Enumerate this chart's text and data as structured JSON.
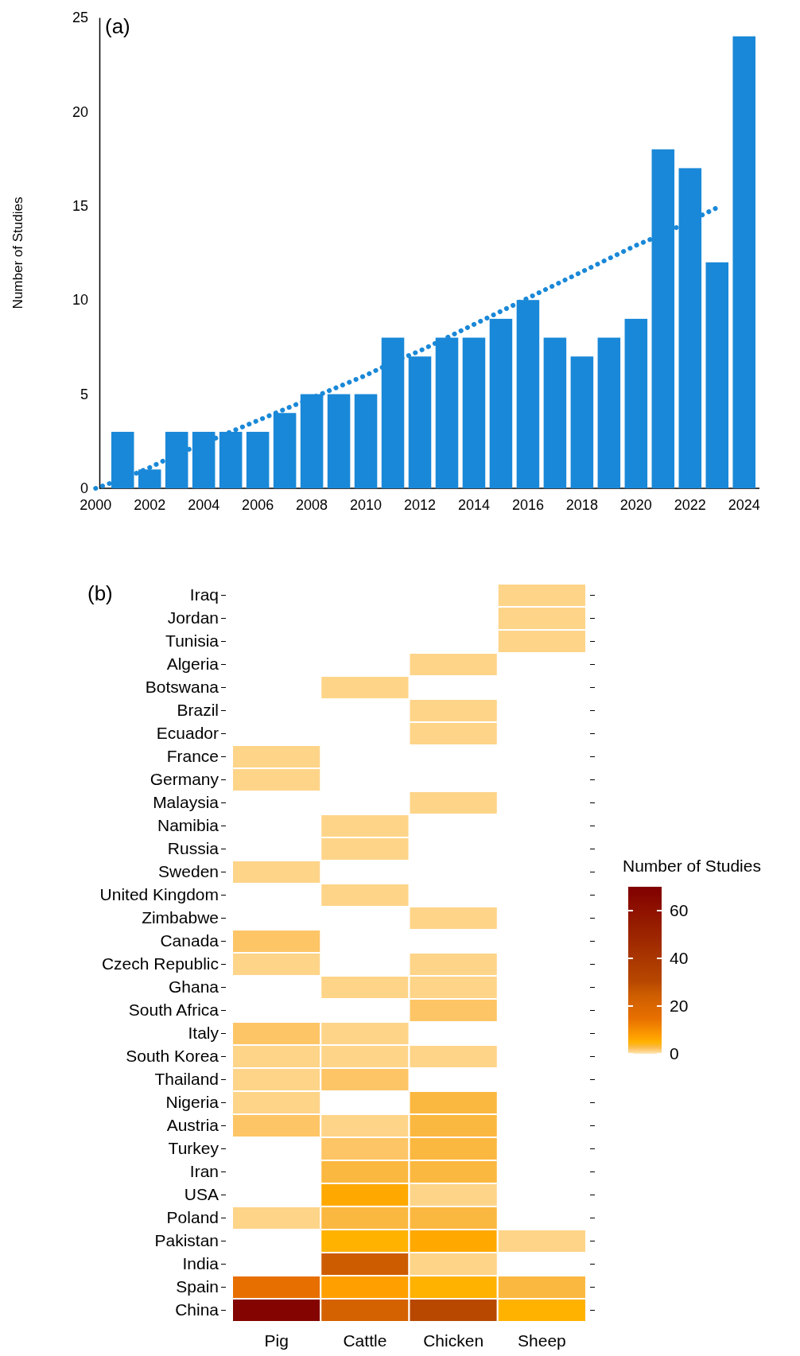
{
  "chart_data": [
    {
      "type": "bar",
      "title": "(a)",
      "ylabel": "Number of Studies",
      "categories": [
        "2000",
        null,
        "2002",
        null,
        "2004",
        null,
        "2006",
        null,
        "2008",
        null,
        "2010",
        null,
        "2012",
        null,
        "2014",
        null,
        "2016",
        null,
        "2018",
        null,
        "2020",
        null,
        "2022",
        null,
        "2024"
      ],
      "series": [
        {
          "type": "bar",
          "color": "#1a88d8",
          "values": [
            null,
            3,
            1,
            3,
            3,
            3,
            3,
            4,
            5,
            5,
            5,
            8,
            7,
            8,
            8,
            9,
            10,
            8,
            7,
            8,
            9,
            18,
            17,
            12,
            24
          ]
        },
        {
          "type": "line",
          "color": "#1a88d8",
          "line_style": "dotted",
          "marker": "none",
          "values": [
            0,
            0.5,
            1.1,
            1.8,
            2.4,
            3.0,
            3.6,
            4.2,
            4.8,
            5.4,
            6.0,
            6.7,
            7.3,
            8.0,
            8.7,
            9.4,
            10.1,
            10.8,
            11.5,
            12.2,
            12.9,
            13.5,
            14.2,
            14.9,
            null
          ]
        }
      ],
      "ylim": [
        0,
        25
      ],
      "yticks": [
        0,
        5,
        10,
        15,
        20,
        25
      ]
    },
    {
      "type": "heatmap",
      "title": "(b)",
      "clabel": "Number of Studies",
      "categories": [
        "Pig",
        "Cattle",
        "Chicken",
        "Sheep"
      ],
      "y_categories": [
        "Iraq",
        "Jordan",
        "Tunisia",
        "Algeria",
        "Botswana",
        "Brazil",
        "Ecuador",
        "France",
        "Germany",
        "Malaysia",
        "Namibia",
        "Russia",
        "Sweden",
        "United Kingdom",
        "Zimbabwe",
        "Canada",
        "Czech Republic",
        "Ghana",
        "South Africa",
        "Italy",
        "South Korea",
        "Thailand",
        "Nigeria",
        "Austria",
        "Turkey",
        "Iran",
        "USA",
        "Poland",
        "Pakistan",
        "India",
        "Spain",
        "China"
      ],
      "cells": [
        [
          null,
          null,
          null,
          1
        ],
        [
          null,
          null,
          null,
          1
        ],
        [
          null,
          null,
          null,
          1
        ],
        [
          null,
          null,
          1,
          null
        ],
        [
          null,
          1,
          null,
          null
        ],
        [
          null,
          null,
          1,
          null
        ],
        [
          null,
          null,
          1,
          null
        ],
        [
          1,
          null,
          null,
          null
        ],
        [
          1,
          null,
          null,
          null
        ],
        [
          null,
          null,
          1,
          null
        ],
        [
          null,
          1,
          null,
          null
        ],
        [
          null,
          1,
          null,
          null
        ],
        [
          1,
          null,
          null,
          null
        ],
        [
          null,
          1,
          null,
          null
        ],
        [
          null,
          null,
          1,
          null
        ],
        [
          2,
          null,
          null,
          null
        ],
        [
          1,
          null,
          1,
          null
        ],
        [
          null,
          1,
          1,
          null
        ],
        [
          null,
          null,
          2,
          null
        ],
        [
          2,
          1,
          null,
          null
        ],
        [
          1,
          1,
          1,
          null
        ],
        [
          1,
          2,
          null,
          null
        ],
        [
          1,
          null,
          3,
          null
        ],
        [
          2,
          1,
          3,
          null
        ],
        [
          null,
          2,
          3,
          null
        ],
        [
          null,
          3,
          3,
          null
        ],
        [
          null,
          6,
          1,
          null
        ],
        [
          1,
          3,
          3,
          null
        ],
        [
          null,
          5,
          6,
          1
        ],
        [
          null,
          25,
          1,
          null
        ],
        [
          15,
          7,
          5,
          3
        ],
        [
          68,
          22,
          30,
          5
        ]
      ],
      "clim": [
        0,
        70
      ],
      "cticks": [
        0,
        20,
        40,
        60
      ]
    }
  ]
}
